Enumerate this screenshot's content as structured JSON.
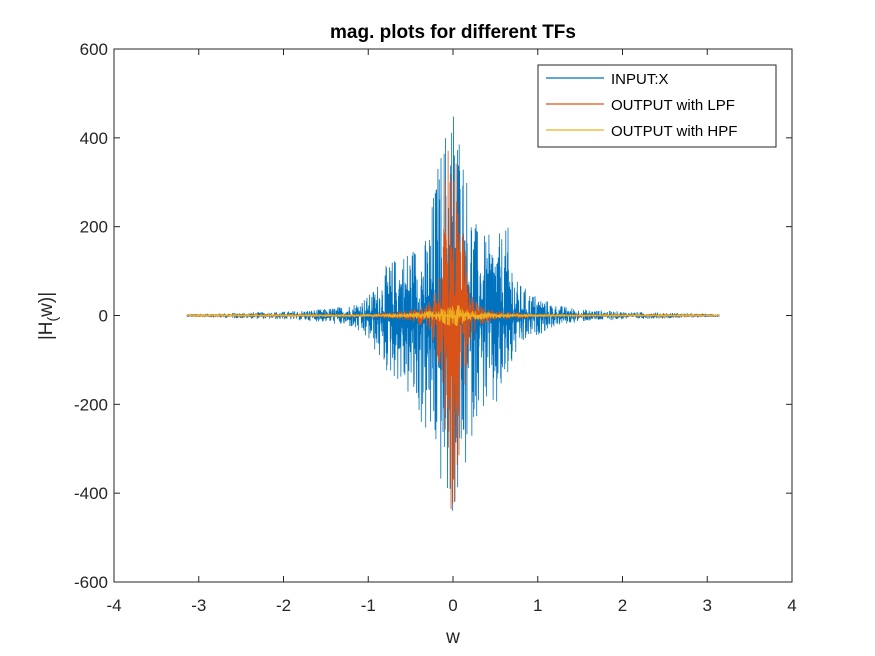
{
  "chart_data": {
    "type": "line",
    "title": "mag. plots for different TFs",
    "xlabel": "w",
    "ylabel": "|H_(w)|",
    "ylabel_main": "|H",
    "ylabel_sub": "(",
    "ylabel_rest": "w)|",
    "xlim": [
      -4,
      4
    ],
    "ylim": [
      -600,
      600
    ],
    "xticks": [
      -4,
      -3,
      -2,
      -1,
      0,
      1,
      2,
      3,
      4
    ],
    "xtick_labels": [
      "-4",
      "-3",
      "-2",
      "-1",
      "0",
      "1",
      "2",
      "3",
      "4"
    ],
    "yticks": [
      -600,
      -400,
      -200,
      0,
      200,
      400,
      600
    ],
    "ytick_labels": [
      "-600",
      "-400",
      "-200",
      "0",
      "200",
      "400",
      "600"
    ],
    "grid": false,
    "legend_position": "top-right",
    "series": [
      {
        "name": "INPUT:X",
        "color": "#0072BD",
        "x_range": [
          -3.14,
          3.14
        ],
        "envelope": [
          {
            "w": -3.1,
            "pos": 3,
            "neg": -3
          },
          {
            "w": -2.6,
            "pos": 6,
            "neg": -6
          },
          {
            "w": -2.0,
            "pos": 9,
            "neg": -9
          },
          {
            "w": -1.5,
            "pos": 15,
            "neg": -15
          },
          {
            "w": -1.2,
            "pos": 25,
            "neg": -28
          },
          {
            "w": -1.0,
            "pos": 45,
            "neg": -60
          },
          {
            "w": -0.9,
            "pos": 70,
            "neg": -90
          },
          {
            "w": -0.8,
            "pos": 110,
            "neg": -130
          },
          {
            "w": -0.65,
            "pos": 140,
            "neg": -150
          },
          {
            "w": -0.5,
            "pos": 160,
            "neg": -200
          },
          {
            "w": -0.3,
            "pos": 180,
            "neg": -290
          },
          {
            "w": -0.2,
            "pos": 330,
            "neg": -340
          },
          {
            "w": -0.1,
            "pos": 430,
            "neg": -440
          },
          {
            "w": -0.02,
            "pos": 515,
            "neg": -465
          },
          {
            "w": 0.02,
            "pos": 515,
            "neg": -465
          },
          {
            "w": 0.1,
            "pos": 430,
            "neg": -430
          },
          {
            "w": 0.2,
            "pos": 280,
            "neg": -300
          },
          {
            "w": 0.3,
            "pos": 185,
            "neg": -210
          },
          {
            "w": 0.5,
            "pos": 180,
            "neg": -240
          },
          {
            "w": 0.65,
            "pos": 200,
            "neg": -150
          },
          {
            "w": 0.75,
            "pos": 80,
            "neg": -90
          },
          {
            "w": 0.9,
            "pos": 55,
            "neg": -55
          },
          {
            "w": 1.2,
            "pos": 25,
            "neg": -25
          },
          {
            "w": 1.5,
            "pos": 14,
            "neg": -14
          },
          {
            "w": 2.0,
            "pos": 9,
            "neg": -9
          },
          {
            "w": 2.6,
            "pos": 6,
            "neg": -6
          },
          {
            "w": 3.1,
            "pos": 3,
            "neg": -3
          }
        ]
      },
      {
        "name": "OUTPUT with LPF",
        "color": "#D95319",
        "x_range": [
          -3.14,
          3.14
        ],
        "envelope": [
          {
            "w": -3.1,
            "pos": 1,
            "neg": -1
          },
          {
            "w": -1.0,
            "pos": 3,
            "neg": -3
          },
          {
            "w": -0.5,
            "pos": 12,
            "neg": -12
          },
          {
            "w": -0.3,
            "pos": 25,
            "neg": -30
          },
          {
            "w": -0.2,
            "pos": 60,
            "neg": -80
          },
          {
            "w": -0.12,
            "pos": 200,
            "neg": -200
          },
          {
            "w": -0.06,
            "pos": 410,
            "neg": -420
          },
          {
            "w": -0.02,
            "pos": 470,
            "neg": -440
          },
          {
            "w": 0.02,
            "pos": 470,
            "neg": -440
          },
          {
            "w": 0.06,
            "pos": 400,
            "neg": -420
          },
          {
            "w": 0.12,
            "pos": 200,
            "neg": -200
          },
          {
            "w": 0.2,
            "pos": 60,
            "neg": -70
          },
          {
            "w": 0.3,
            "pos": 25,
            "neg": -25
          },
          {
            "w": 0.5,
            "pos": 12,
            "neg": -12
          },
          {
            "w": 1.0,
            "pos": 3,
            "neg": -3
          },
          {
            "w": 3.1,
            "pos": 1,
            "neg": -1
          }
        ]
      },
      {
        "name": "OUTPUT with HPF",
        "color": "#EDB120",
        "x_range": [
          -3.14,
          3.14
        ],
        "envelope": [
          {
            "w": -3.1,
            "pos": 1,
            "neg": -1
          },
          {
            "w": -1.0,
            "pos": 3,
            "neg": -3
          },
          {
            "w": -0.5,
            "pos": 6,
            "neg": -6
          },
          {
            "w": -0.2,
            "pos": 12,
            "neg": -12
          },
          {
            "w": -0.05,
            "pos": 25,
            "neg": -25
          },
          {
            "w": 0.05,
            "pos": 25,
            "neg": -25
          },
          {
            "w": 0.2,
            "pos": 12,
            "neg": -12
          },
          {
            "w": 0.5,
            "pos": 6,
            "neg": -6
          },
          {
            "w": 1.0,
            "pos": 3,
            "neg": -3
          },
          {
            "w": 3.1,
            "pos": 1,
            "neg": -1
          }
        ]
      }
    ]
  }
}
